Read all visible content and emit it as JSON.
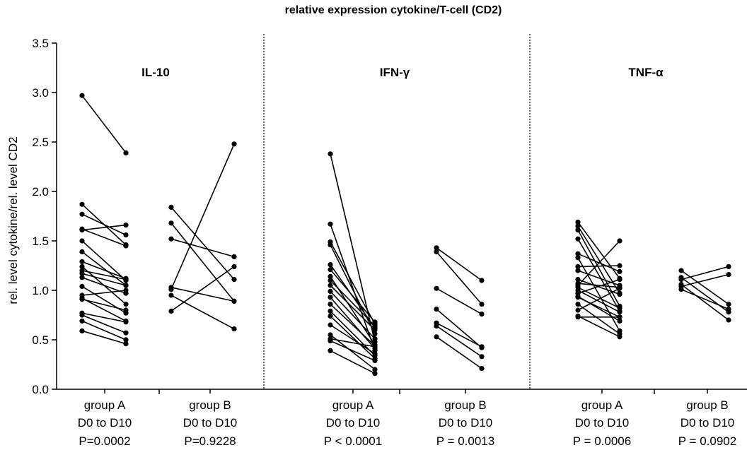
{
  "chart_data": {
    "type": "scatter",
    "title": "relative expression cytokine/T-cell (CD2)",
    "ylabel": "rel. level cytokine/rel. level CD2",
    "ylim": [
      0,
      3.5
    ],
    "yticks": [
      "0.0",
      "0.5",
      "1.0",
      "1.5",
      "2.0",
      "2.5",
      "3.0",
      "3.5"
    ],
    "grid": false,
    "panels": [
      {
        "name": "IL-10",
        "groups": [
          {
            "label": "group  A",
            "sublabel": "D0 to D10",
            "pvalue": "P=0.0002",
            "pairs": [
              [
                2.97,
                2.39
              ],
              [
                1.87,
                1.46
              ],
              [
                1.77,
                1.56
              ],
              [
                1.62,
                1.45
              ],
              [
                1.61,
                1.66
              ],
              [
                1.5,
                1.1
              ],
              [
                1.39,
                1.05
              ],
              [
                1.29,
                1.12
              ],
              [
                1.24,
                0.86
              ],
              [
                1.2,
                1.11
              ],
              [
                1.17,
                1.05
              ],
              [
                1.13,
                0.97
              ],
              [
                1.04,
                0.77
              ],
              [
                0.95,
                1.0
              ],
              [
                0.92,
                0.69
              ],
              [
                0.91,
                0.8
              ],
              [
                0.77,
                0.68
              ],
              [
                0.75,
                0.57
              ],
              [
                0.69,
                0.5
              ],
              [
                0.59,
                0.46
              ]
            ]
          },
          {
            "label": "group  B",
            "sublabel": "D0 to D10",
            "pvalue": "P=0.9228",
            "pairs": [
              [
                1.84,
                1.11
              ],
              [
                1.68,
                0.89
              ],
              [
                1.52,
                1.34
              ],
              [
                1.03,
                0.89
              ],
              [
                1.01,
                2.48
              ],
              [
                0.95,
                0.61
              ],
              [
                0.79,
                1.24
              ]
            ]
          }
        ]
      },
      {
        "name": "IFN-γ",
        "groups": [
          {
            "label": "group  A",
            "sublabel": "D0 to D10",
            "pvalue": "P < 0.0001",
            "pairs": [
              [
                2.38,
                0.48
              ],
              [
                1.67,
                0.39
              ],
              [
                1.49,
                0.66
              ],
              [
                1.46,
                0.56
              ],
              [
                1.26,
                0.62
              ],
              [
                1.21,
                0.68
              ],
              [
                1.14,
                0.45
              ],
              [
                1.1,
                0.64
              ],
              [
                1.05,
                0.6
              ],
              [
                0.99,
                0.51
              ],
              [
                0.93,
                0.41
              ],
              [
                0.86,
                0.44
              ],
              [
                0.79,
                0.34
              ],
              [
                0.74,
                0.31
              ],
              [
                0.65,
                0.36
              ],
              [
                0.55,
                0.2
              ],
              [
                0.51,
                0.43
              ],
              [
                0.49,
                0.29
              ],
              [
                0.39,
                0.16
              ]
            ]
          },
          {
            "label": "group  B",
            "sublabel": "D0 to D10",
            "pvalue": "P = 0.0013",
            "pairs": [
              [
                1.43,
                1.1
              ],
              [
                1.39,
                0.86
              ],
              [
                1.02,
                0.76
              ],
              [
                0.81,
                0.42
              ],
              [
                0.67,
                0.43
              ],
              [
                0.64,
                0.33
              ],
              [
                0.53,
                0.21
              ]
            ]
          }
        ]
      },
      {
        "name": "TNF-α",
        "groups": [
          {
            "label": "group  A",
            "sublabel": "D0 to D10",
            "pvalue": "P = 0.0006",
            "pairs": [
              [
                1.69,
                1.12
              ],
              [
                1.65,
                0.97
              ],
              [
                1.61,
                0.84
              ],
              [
                1.52,
                0.79
              ],
              [
                1.37,
                1.19
              ],
              [
                1.33,
                0.59
              ],
              [
                1.24,
                1.25
              ],
              [
                1.2,
                1.05
              ],
              [
                1.11,
                0.96
              ],
              [
                1.07,
                1.03
              ],
              [
                1.05,
                1.5
              ],
              [
                1.03,
                0.82
              ],
              [
                1.0,
                0.78
              ],
              [
                0.97,
                1.11
              ],
              [
                0.94,
                0.69
              ],
              [
                0.93,
                0.73
              ],
              [
                0.86,
                0.56
              ],
              [
                0.8,
                1.02
              ],
              [
                0.74,
                0.53
              ],
              [
                0.73,
                0.73
              ]
            ]
          },
          {
            "label": "group  B",
            "sublabel": "D0 to D10",
            "pvalue": "P = 0.0902",
            "pairs": [
              [
                1.2,
                0.86
              ],
              [
                1.13,
                0.78
              ],
              [
                1.11,
                1.24
              ],
              [
                1.06,
                0.7
              ],
              [
                1.04,
                1.16
              ],
              [
                1.01,
                0.81
              ]
            ]
          }
        ]
      }
    ]
  }
}
